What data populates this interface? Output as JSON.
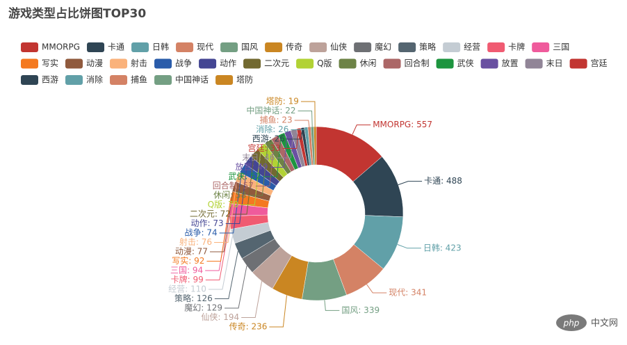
{
  "chart_data": {
    "type": "donut",
    "title": "游戏类型占比饼图TOP30",
    "categories": [
      "MMORPG",
      "卡通",
      "日韩",
      "现代",
      "国风",
      "传奇",
      "仙侠",
      "魔幻",
      "策略",
      "经营",
      "卡牌",
      "三国",
      "写实",
      "动漫",
      "射击",
      "战争",
      "动作",
      "二次元",
      "Q版",
      "休闲",
      "回合制",
      "武侠",
      "放置",
      "末日",
      "宫廷",
      "西游",
      "消除",
      "捕鱼",
      "中国神话",
      "塔防"
    ],
    "values": [
      557,
      488,
      423,
      341,
      339,
      236,
      194,
      129,
      126,
      110,
      99,
      94,
      92,
      77,
      76,
      74,
      73,
      72,
      70,
      58,
      57,
      52,
      49,
      46,
      33,
      26,
      26,
      23,
      22,
      19
    ],
    "value_labels": [
      "MMORPG: 557",
      "卡通: 488",
      "日韩: 423",
      "现代: 341",
      "国风: 339",
      "传奇: 236",
      "仙侠: 194",
      "魔幻: 129",
      "策略: 126",
      "经营: 110",
      "卡牌: 99",
      "三国: 94",
      "写实: 92",
      "动漫: 77",
      "射击: 76",
      "战争: 74",
      "动作: 73",
      "二次元: 72",
      "Q版: 70",
      "休闲: 58",
      "回合制: 57",
      "武侠: 52",
      "放置: 49",
      "末日: 46",
      "宫廷: 33",
      "西游: 26",
      "消除: 26",
      "捕鱼: 23",
      "中国神话: 22",
      "塔防: 19"
    ],
    "colors": [
      "#c23531",
      "#2f4554",
      "#61a0a8",
      "#d48265",
      "#749f83",
      "#ca8622",
      "#bda29a",
      "#6e7074",
      "#546570",
      "#c4ccd3",
      "#f05b72",
      "#ef5b9c",
      "#f47920",
      "#905a3d",
      "#fab27b",
      "#2a5caa",
      "#444693",
      "#726930",
      "#b2d235",
      "#6d8346",
      "#ac6767",
      "#1d953f",
      "#6950a1",
      "#918597",
      "#c23531",
      "#2f4554",
      "#61a0a8",
      "#d48265",
      "#749f83",
      "#ca8622"
    ],
    "legend": "top"
  },
  "watermark": {
    "logo": "php",
    "text": "中文网"
  }
}
